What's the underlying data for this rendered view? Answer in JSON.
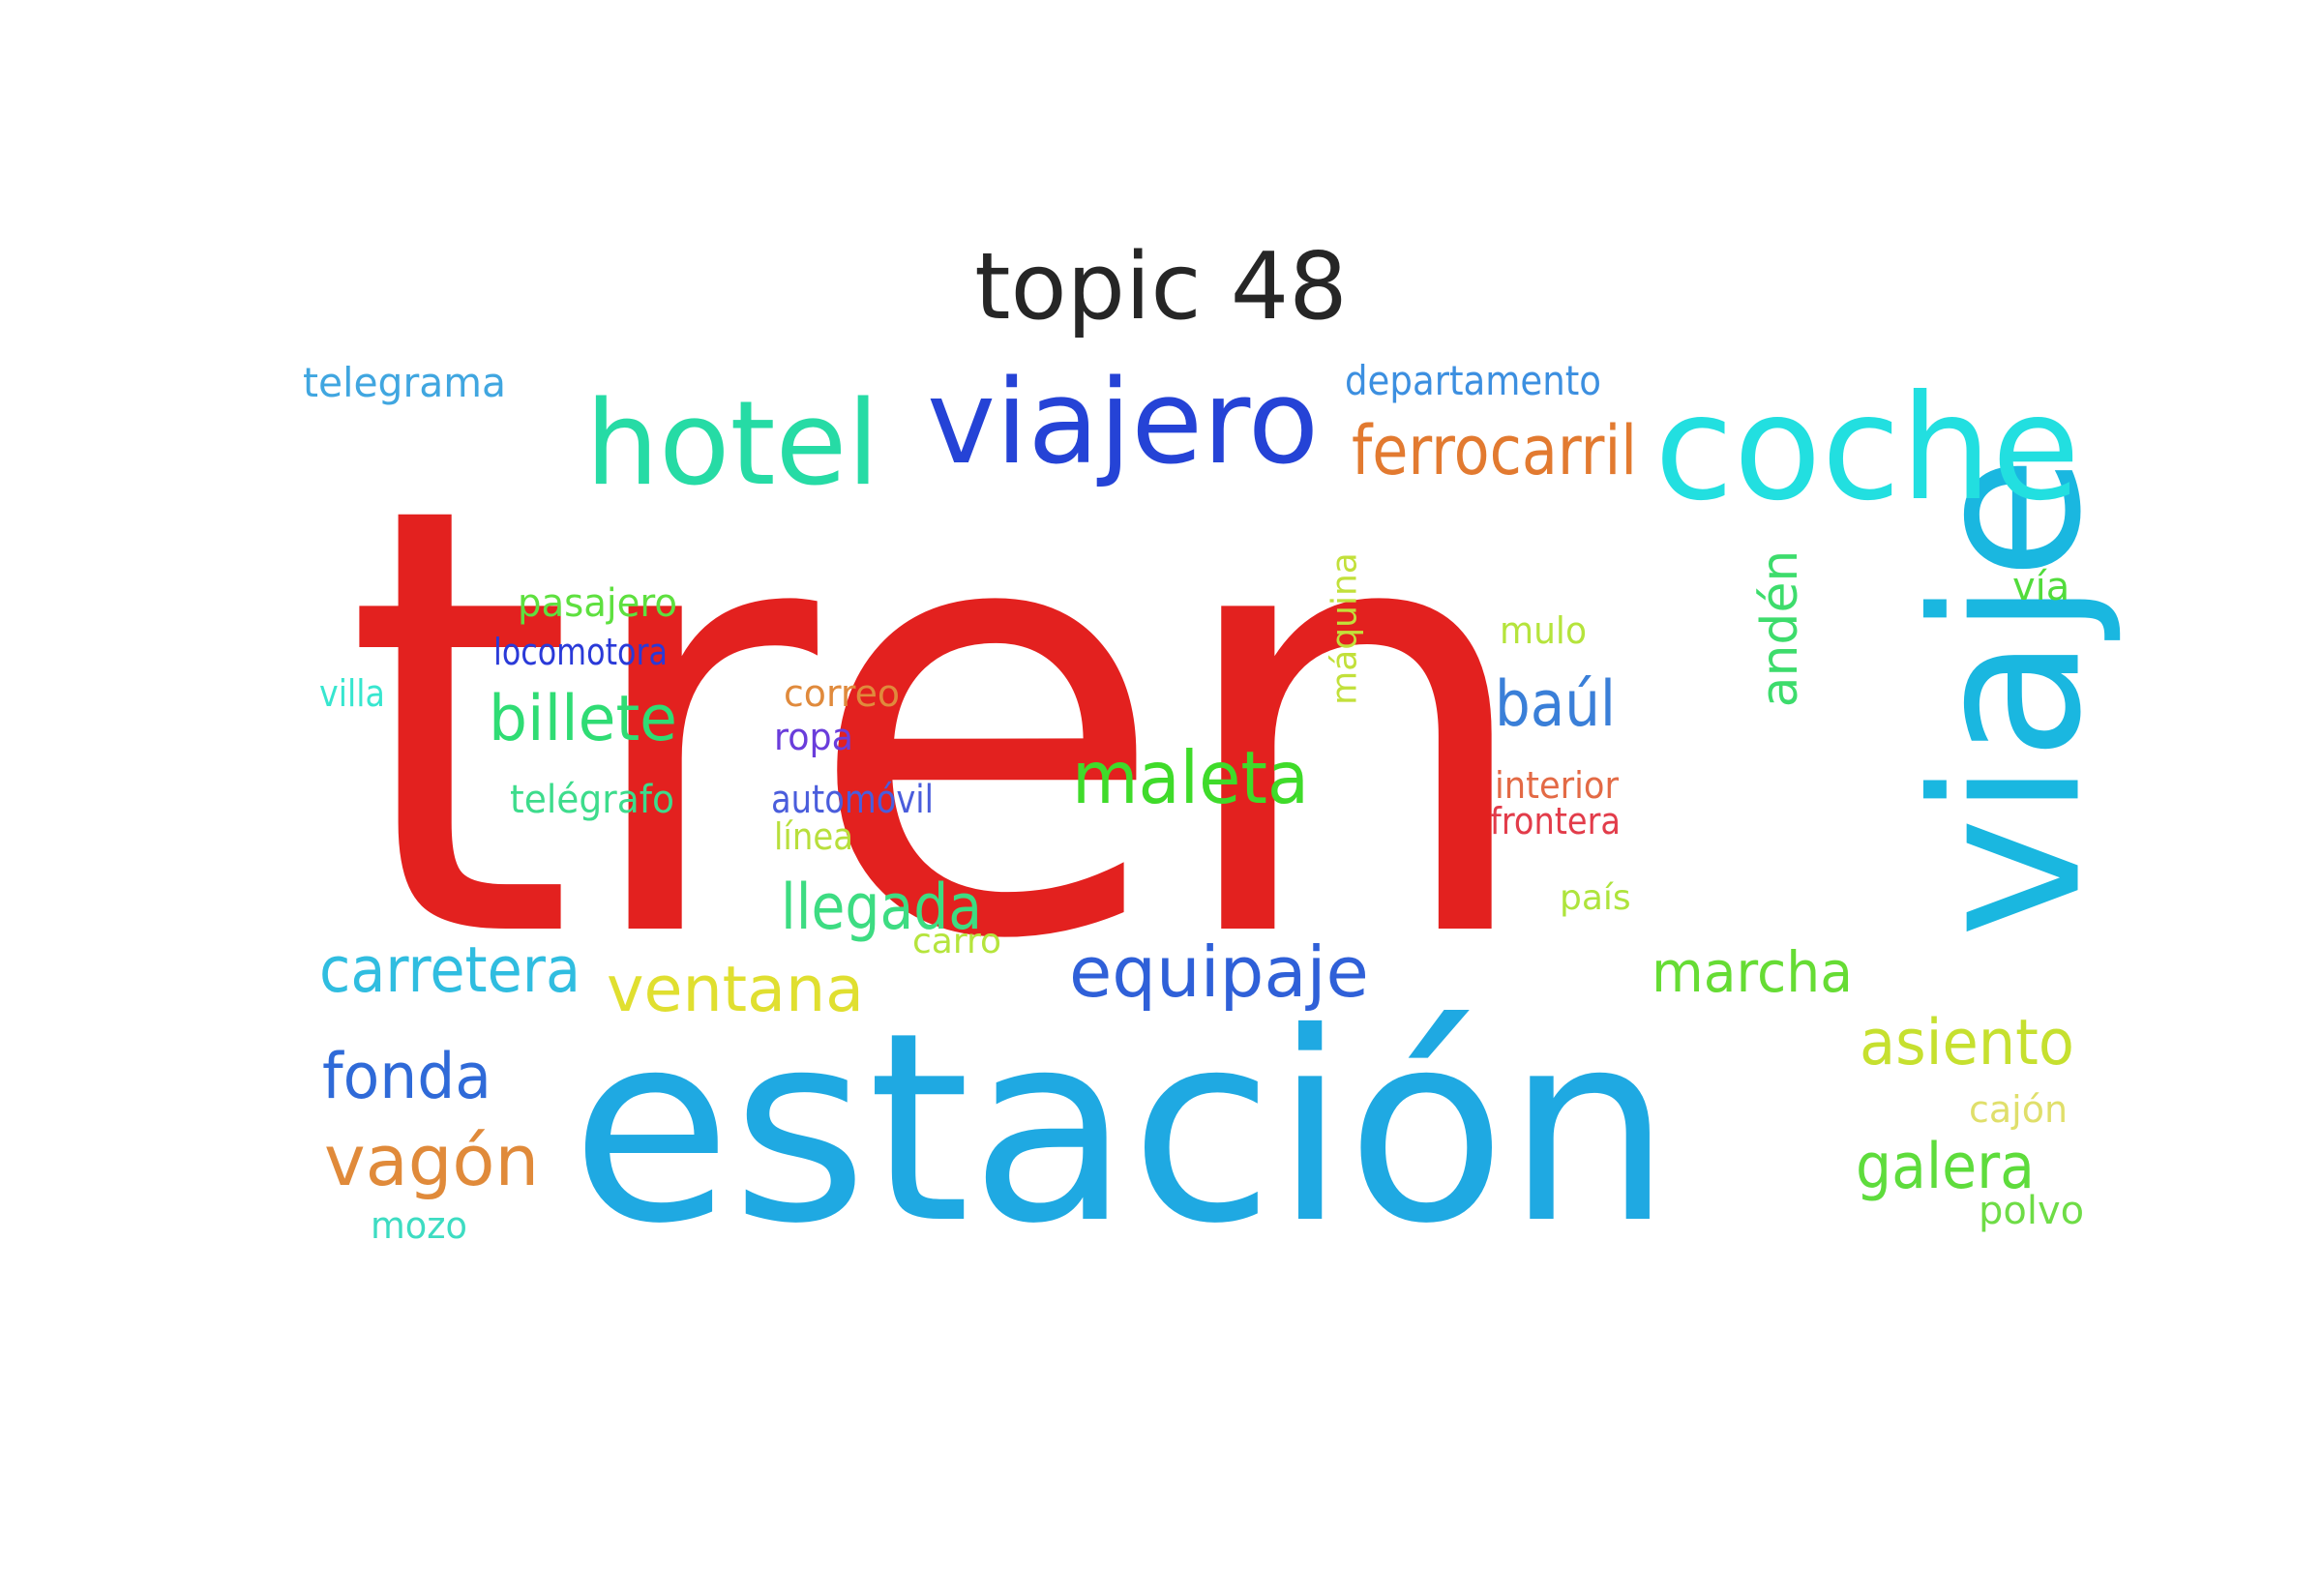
{
  "title": "topic 48",
  "words": [
    {
      "text": "tren",
      "color": "#e3211f",
      "orientation": "horizontal"
    },
    {
      "text": "estación",
      "color": "#1fa9e2",
      "orientation": "horizontal"
    },
    {
      "text": "viaje",
      "color": "#1ab7e0",
      "orientation": "vertical"
    },
    {
      "text": "viajero",
      "color": "#2543d6",
      "orientation": "horizontal"
    },
    {
      "text": "hotel",
      "color": "#26dba5",
      "orientation": "horizontal"
    },
    {
      "text": "coche",
      "color": "#22dfe0",
      "orientation": "horizontal"
    },
    {
      "text": "ferrocarril",
      "color": "#e27a30",
      "orientation": "horizontal"
    },
    {
      "text": "departamento",
      "color": "#3c8fe0",
      "orientation": "horizontal"
    },
    {
      "text": "telegrama",
      "color": "#40a6e0",
      "orientation": "horizontal"
    },
    {
      "text": "pasajero",
      "color": "#5ee03f",
      "orientation": "horizontal"
    },
    {
      "text": "locomotora",
      "color": "#2a3ad8",
      "orientation": "horizontal"
    },
    {
      "text": "villa",
      "color": "#37e6cf",
      "orientation": "horizontal"
    },
    {
      "text": "billete",
      "color": "#2fdc74",
      "orientation": "horizontal"
    },
    {
      "text": "correo",
      "color": "#e08a3c",
      "orientation": "horizontal"
    },
    {
      "text": "ropa",
      "color": "#6a3ddb",
      "orientation": "horizontal"
    },
    {
      "text": "telégrafo",
      "color": "#3ddc8c",
      "orientation": "horizontal"
    },
    {
      "text": "automóvil",
      "color": "#4a5ddc",
      "orientation": "horizontal"
    },
    {
      "text": "línea",
      "color": "#b8df3c",
      "orientation": "horizontal"
    },
    {
      "text": "maleta",
      "color": "#3fdb2a",
      "orientation": "horizontal"
    },
    {
      "text": "máquina",
      "color": "#c2e03a",
      "orientation": "vertical"
    },
    {
      "text": "mulo",
      "color": "#b5e43c",
      "orientation": "horizontal"
    },
    {
      "text": "baúl",
      "color": "#3a7fd8",
      "orientation": "horizontal"
    },
    {
      "text": "andén",
      "color": "#3ddc6c",
      "orientation": "vertical"
    },
    {
      "text": "vía",
      "color": "#52dc3c",
      "orientation": "horizontal"
    },
    {
      "text": "interior",
      "color": "#e36a45",
      "orientation": "horizontal"
    },
    {
      "text": "frontera",
      "color": "#e23c4a",
      "orientation": "horizontal"
    },
    {
      "text": "país",
      "color": "#aee43c",
      "orientation": "horizontal"
    },
    {
      "text": "llegada",
      "color": "#3ddc82",
      "orientation": "horizontal"
    },
    {
      "text": "carro",
      "color": "#b5e43c",
      "orientation": "horizontal"
    },
    {
      "text": "carretera",
      "color": "#30bde0",
      "orientation": "horizontal"
    },
    {
      "text": "ventana",
      "color": "#e0df30",
      "orientation": "horizontal"
    },
    {
      "text": "equipaje",
      "color": "#2f60d8",
      "orientation": "horizontal"
    },
    {
      "text": "marcha",
      "color": "#66dc34",
      "orientation": "horizontal"
    },
    {
      "text": "asiento",
      "color": "#c6e02f",
      "orientation": "horizontal"
    },
    {
      "text": "fonda",
      "color": "#2f6ad8",
      "orientation": "horizontal"
    },
    {
      "text": "vagón",
      "color": "#e08a3a",
      "orientation": "horizontal"
    },
    {
      "text": "cajón",
      "color": "#e0df6a",
      "orientation": "horizontal"
    },
    {
      "text": "galera",
      "color": "#5edc3c",
      "orientation": "horizontal"
    },
    {
      "text": "mozo",
      "color": "#3ddcc2",
      "orientation": "horizontal"
    },
    {
      "text": "polvo",
      "color": "#6edc46",
      "orientation": "horizontal"
    }
  ]
}
